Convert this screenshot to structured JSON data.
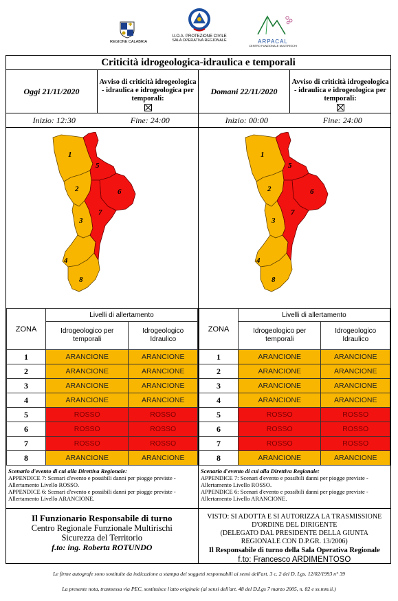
{
  "header": {
    "logo_left": "REGIONE CALABRIA",
    "logo_center_1": "U.O.A. PROTEZIONE CIVILE",
    "logo_center_2": "SALA OPERATIVA REGIONALE",
    "logo_right": "ARPACAL",
    "logo_right_sub": "CENTRO FUNZIONALE MULTIRISCHI"
  },
  "title": "Criticità idrogeologica-idraulica e temporali",
  "days": [
    {
      "date": "Oggi 21/11/2020",
      "avviso": "Avviso di criticità idrogeologica - idraulica e idrogeologica per temporali:",
      "inizio": "Inizio: 12:30",
      "fine": "Fine: 24:00"
    },
    {
      "date": "Domani 22/11/2020",
      "avviso": "Avviso di criticità idrogeologica - idraulica e idrogeologica per temporali:",
      "inizio": "Inizio: 00:00",
      "fine": "Fine: 24:00"
    }
  ],
  "table": {
    "zona_header": "ZONA",
    "levels_header": "Livelli di allertamento",
    "col1": "Idrogeologico per temporali",
    "col2": "Idrogeologico Idraulico"
  },
  "zones": [
    {
      "n": "1",
      "level": "ARANCIONE"
    },
    {
      "n": "2",
      "level": "ARANCIONE"
    },
    {
      "n": "3",
      "level": "ARANCIONE"
    },
    {
      "n": "4",
      "level": "ARANCIONE"
    },
    {
      "n": "5",
      "level": "ROSSO"
    },
    {
      "n": "6",
      "level": "ROSSO"
    },
    {
      "n": "7",
      "level": "ROSSO"
    },
    {
      "n": "8",
      "level": "ARANCIONE"
    }
  ],
  "colors": {
    "arancione": "#f9b600",
    "rosso": "#f21210"
  },
  "scenario": {
    "heading": "Scenario d'evento di cui alla Direttiva Regionale:",
    "line1": "APPENDICE 7: Scenari d'evento e possibili danni per piogge previste - Allertamento Livello ROSSO.",
    "line2": "APPENDICE 6: Scenari d'evento e possibili danni per piogge previste - Allertamento Livello ARANCIONE."
  },
  "signature_left": {
    "l1": "Il Funzionario Responsabile di turno",
    "l2": "Centro Regionale Funzionale Multirischi",
    "l3": "Sicurezza del Territorio",
    "l4": "f.to: ing. Roberta ROTUNDO"
  },
  "signature_right": {
    "l1": "VISTO: SI ADOTTA E SI AUTORIZZA LA TRASMISSIONE",
    "l2": "D'ORDINE DEL DIRIGENTE",
    "l3": "(DELEGATO DAL PRESIDENTE DELLA GIUNTA",
    "l4": "REGIONALE CON D.P.GR. 13/2006)",
    "l5": "Il Responsabile di turno della Sala Operativa Regionale",
    "l6": "f.to: Francesco ARDIMENTOSO"
  },
  "footer": {
    "line1": "Le firme autografe sono sostituite da indicazione a stampa dei soggetti responsabili ai sensi dell'art. 3 c. 2 del D. Lgs. 12/02/1993 n° 39",
    "line2": "La presente nota, trasmessa via PEC, sostituisce l'atto originale (ai sensi dell'art. 48 del D.Lgs 7 marzo 2005, n. 82 e ss.mm.ii.)"
  }
}
